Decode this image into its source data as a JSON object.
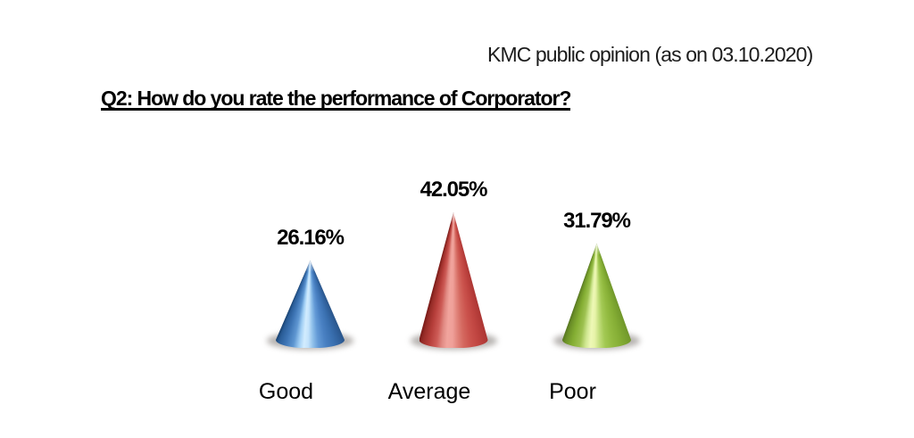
{
  "header": {
    "note": "KMC public opinion (as on 03.10.2020)"
  },
  "title": "Q2: How do you rate the performance of Corporator?",
  "chart_data": {
    "type": "bar",
    "subtype": "3d-cone",
    "title": "Q2: How do you rate the performance of Corporator?",
    "xlabel": "",
    "ylabel": "",
    "grid": false,
    "legend": "none",
    "axes_visible": false,
    "categories": [
      "Good",
      "Average",
      "Poor"
    ],
    "values": [
      26.16,
      42.05,
      31.79
    ],
    "value_labels": [
      "26.16%",
      "42.05%",
      "31.79%"
    ],
    "series": [
      {
        "name": "Good",
        "value": 26.16,
        "value_label": "26.16%",
        "color": "#3d74b4",
        "gradient": [
          [
            0,
            "#17406e"
          ],
          [
            0.05,
            "#2a5d98"
          ],
          [
            0.15,
            "#3e75b5"
          ],
          [
            0.26,
            "#5e96d1"
          ],
          [
            0.34,
            "#a0cef4"
          ],
          [
            0.41,
            "#d2ecfe"
          ],
          [
            0.47,
            "#c4e3fb"
          ],
          [
            0.54,
            "#8fc0ea"
          ],
          [
            0.62,
            "#639ad6"
          ],
          [
            0.72,
            "#4a81c3"
          ],
          [
            0.84,
            "#3a70b0"
          ],
          [
            0.94,
            "#2f5f9a"
          ],
          [
            1,
            "#2a5589"
          ]
        ]
      },
      {
        "name": "Average",
        "value": 42.05,
        "value_label": "42.05%",
        "color": "#b43a37",
        "gradient": [
          [
            0,
            "#7b1b18"
          ],
          [
            0.05,
            "#982d28"
          ],
          [
            0.15,
            "#b73f3b"
          ],
          [
            0.25,
            "#cd5b56"
          ],
          [
            0.33,
            "#e18b84"
          ],
          [
            0.4,
            "#f1a49d"
          ],
          [
            0.48,
            "#efa099"
          ],
          [
            0.56,
            "#e08279"
          ],
          [
            0.64,
            "#d4685f"
          ],
          [
            0.74,
            "#cb534d"
          ],
          [
            0.85,
            "#c04541"
          ],
          [
            0.95,
            "#b23a37"
          ],
          [
            1,
            "#aa3532"
          ]
        ]
      },
      {
        "name": "Poor",
        "value": 31.79,
        "value_label": "31.79%",
        "color": "#83ad33",
        "gradient": [
          [
            0,
            "#567521"
          ],
          [
            0.05,
            "#6b9027"
          ],
          [
            0.15,
            "#84ae33"
          ],
          [
            0.26,
            "#9dc150"
          ],
          [
            0.34,
            "#cfe791"
          ],
          [
            0.41,
            "#eef8b6"
          ],
          [
            0.47,
            "#e6f3a8"
          ],
          [
            0.54,
            "#c3de7d"
          ],
          [
            0.62,
            "#a3c954"
          ],
          [
            0.72,
            "#93bb41"
          ],
          [
            0.84,
            "#85ae35"
          ],
          [
            0.94,
            "#78a02e"
          ],
          [
            1,
            "#71962b"
          ]
        ]
      }
    ],
    "shadow_color": "#aaa6a3"
  }
}
